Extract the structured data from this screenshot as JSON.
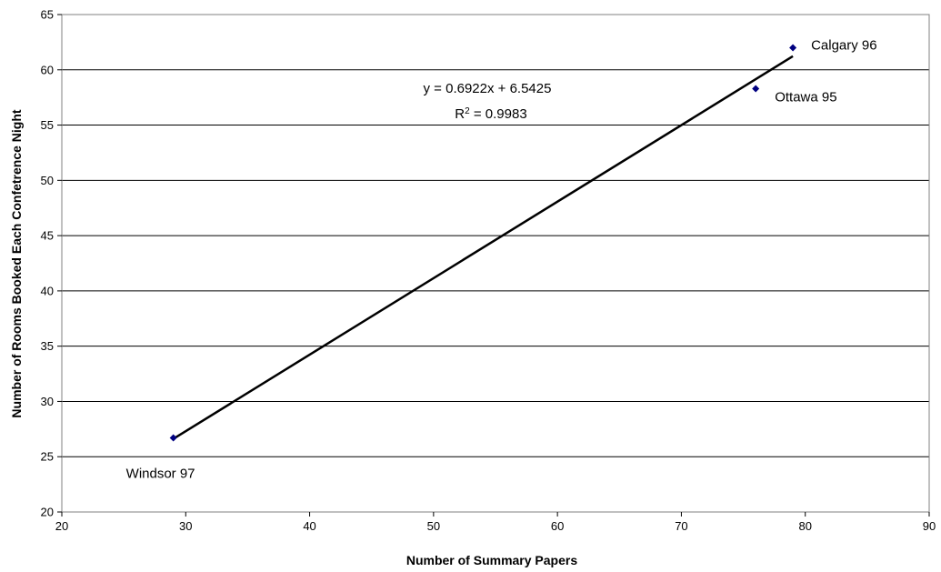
{
  "chart_data": {
    "type": "scatter",
    "title": "",
    "xlabel": "Number of Summary Papers",
    "ylabel": "Number of Rooms Booked Each Confetrence Night",
    "xlim": [
      20,
      90
    ],
    "ylim": [
      20,
      65
    ],
    "xticks": [
      20,
      30,
      40,
      50,
      60,
      70,
      80,
      90
    ],
    "yticks": [
      20,
      25,
      30,
      35,
      40,
      45,
      50,
      55,
      60,
      65
    ],
    "grid": "horizontal",
    "legend": "none",
    "points": [
      {
        "label": "Windsor 97",
        "x": 29,
        "y": 26.7
      },
      {
        "label": "Ottawa 95",
        "x": 76,
        "y": 58.3
      },
      {
        "label": "Calgary 96",
        "x": 79,
        "y": 62
      }
    ],
    "trendline": {
      "type": "linear",
      "slope": 0.6922,
      "intercept": 6.5425,
      "x_range": [
        29,
        79
      ],
      "equation": "y = 0.6922x + 6.5425",
      "r2_prefix": "R",
      "r2_superscript": "2",
      "r2_value": " = 0.9983"
    },
    "colors": {
      "marker": "#000080",
      "trendline": "#000000",
      "grid": "#000000"
    }
  }
}
